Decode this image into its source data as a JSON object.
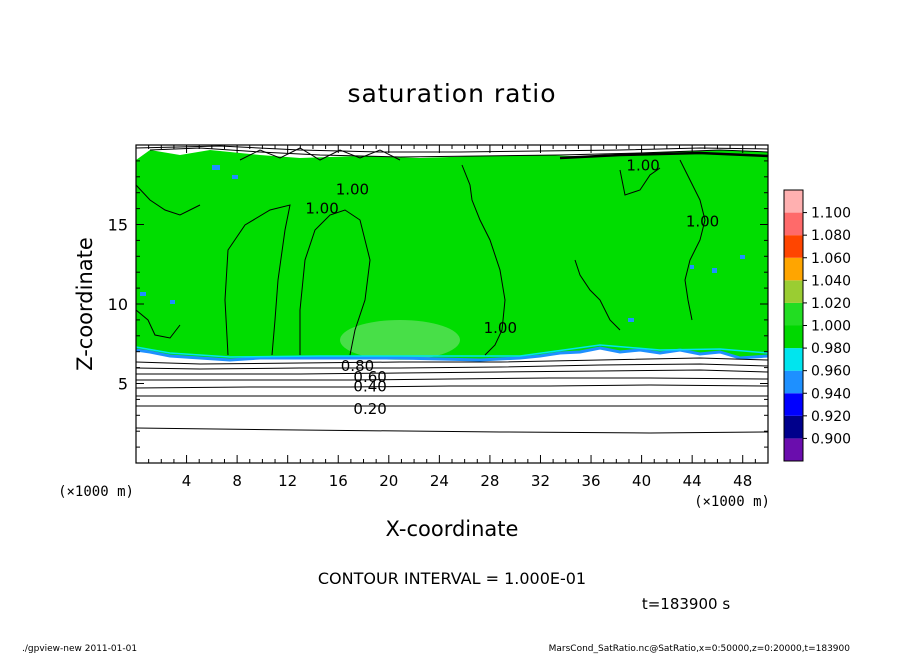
{
  "chart_data": {
    "type": "heatmap",
    "title": "saturation ratio",
    "xlabel": "X-coordinate",
    "ylabel": "Z-coordinate",
    "x_unit": "(×1000 m)",
    "y_unit": "(×1000 m)",
    "xlim": [
      0,
      50
    ],
    "ylim": [
      0,
      20
    ],
    "x_ticks": [
      4,
      8,
      12,
      16,
      20,
      24,
      28,
      32,
      36,
      40,
      44,
      48
    ],
    "y_ticks": [
      5,
      10,
      15
    ],
    "contour_interval_text": "CONTOUR INTERVAL = 1.000E-01",
    "time_text": "t=183900 s",
    "contour_labels": [
      {
        "text": "1.00",
        "x": 13.4,
        "z": 16.0
      },
      {
        "text": "1.00",
        "x": 15.8,
        "z": 17.2
      },
      {
        "text": "1.00",
        "x": 27.5,
        "z": 8.5
      },
      {
        "text": "1.00",
        "x": 43.5,
        "z": 15.2
      },
      {
        "text": "1.00",
        "x": 38.8,
        "z": 18.7
      },
      {
        "text": "0.80",
        "x": 16.2,
        "z": 6.1
      },
      {
        "text": "0.60",
        "x": 17.2,
        "z": 5.4
      },
      {
        "text": "0.40",
        "x": 17.2,
        "z": 4.8
      },
      {
        "text": "0.20",
        "x": 17.2,
        "z": 3.4
      }
    ],
    "colorbar": {
      "levels": [
        0.9,
        0.92,
        0.94,
        0.96,
        0.98,
        1.0,
        1.02,
        1.04,
        1.06,
        1.08,
        1.1
      ],
      "labels": [
        "0.900",
        "0.920",
        "0.940",
        "0.960",
        "0.980",
        "1.000",
        "1.020",
        "1.040",
        "1.060",
        "1.080",
        "1.100"
      ],
      "colors": [
        "#6a0dad",
        "#00008b",
        "#0000ff",
        "#1e90ff",
        "#00e5ee",
        "#00d800",
        "#22dd22",
        "#9acd32",
        "#ffa500",
        "#ff4500",
        "#ff6a6a",
        "#ffb0b0"
      ]
    }
  },
  "footer": {
    "left": "./gpview-new   2011-01-01",
    "right": "MarsCond_SatRatio.nc@SatRatio,x=0:50000,z=0:20000,t=183900"
  }
}
